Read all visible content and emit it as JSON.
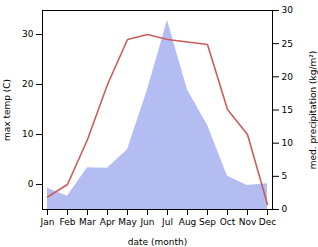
{
  "chart_data": {
    "type": "line",
    "x_label": "date (month)",
    "y_label": "max temp (C)",
    "y2_label": "med. precipitation (kg/m²)",
    "categories": [
      "Jan",
      "Feb",
      "Mar",
      "Apr",
      "May",
      "Jun",
      "Jul",
      "Aug",
      "Sep",
      "Oct",
      "Nov",
      "Dec"
    ],
    "series": [
      {
        "name": "max temp",
        "type": "line",
        "color": "#cd5c5c",
        "axis": "y",
        "values": [
          -2.5,
          0,
          9,
          20,
          29,
          30,
          29,
          28.5,
          28,
          15,
          10,
          -4
        ]
      },
      {
        "name": "med. precipitation",
        "type": "area",
        "color": "#b3bdf2",
        "axis": "y2",
        "values": [
          3.2,
          2,
          6.3,
          6.2,
          9,
          18,
          28.5,
          18,
          12.7,
          5,
          3.6,
          3.9
        ]
      }
    ],
    "ylim": [
      -5,
      34.8
    ],
    "yticks": [
      0,
      10,
      20,
      30
    ],
    "y2lim": [
      0,
      30
    ],
    "y2ticks": [
      0,
      5,
      10,
      15,
      20,
      25,
      30
    ],
    "grid": false
  }
}
